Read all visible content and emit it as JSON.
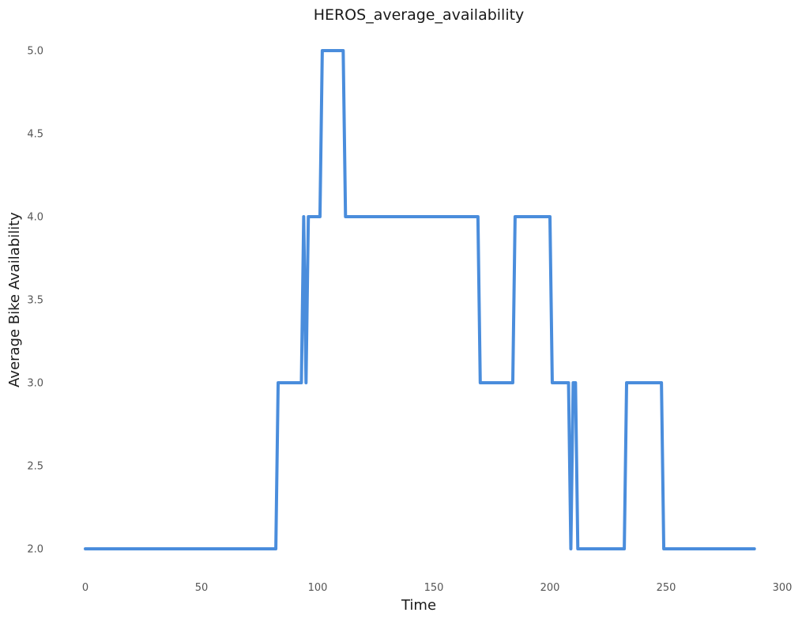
{
  "chart_data": {
    "type": "line",
    "title": "HEROS_average_availability",
    "xlabel": "Time",
    "ylabel": "Average Bike Availability",
    "xlim": [
      0,
      300
    ],
    "ylim": [
      2.0,
      5.0
    ],
    "x_ticks": [
      0,
      50,
      100,
      150,
      200,
      250,
      300
    ],
    "y_ticks": [
      2.0,
      2.5,
      3.0,
      3.5,
      4.0,
      4.5,
      5.0
    ],
    "y_tick_labels": [
      "2.0",
      "2.5",
      "3.0",
      "3.5",
      "4.0",
      "4.5",
      "5.0"
    ],
    "grid": false,
    "legend": "none",
    "series": [
      {
        "color": "#4a8ddc",
        "points": [
          [
            0,
            2
          ],
          [
            82,
            2
          ],
          [
            83,
            3
          ],
          [
            93,
            3
          ],
          [
            94,
            4
          ],
          [
            95,
            3
          ],
          [
            96,
            4
          ],
          [
            101,
            4
          ],
          [
            102,
            5
          ],
          [
            111,
            5
          ],
          [
            112,
            4
          ],
          [
            169,
            4
          ],
          [
            170,
            3
          ],
          [
            184,
            3
          ],
          [
            185,
            4
          ],
          [
            200,
            4
          ],
          [
            201,
            3
          ],
          [
            208,
            3
          ],
          [
            209,
            2
          ],
          [
            210,
            3
          ],
          [
            211,
            3
          ],
          [
            212,
            2
          ],
          [
            232,
            2
          ],
          [
            233,
            3
          ],
          [
            248,
            3
          ],
          [
            249,
            2
          ],
          [
            288,
            2
          ]
        ]
      }
    ]
  }
}
